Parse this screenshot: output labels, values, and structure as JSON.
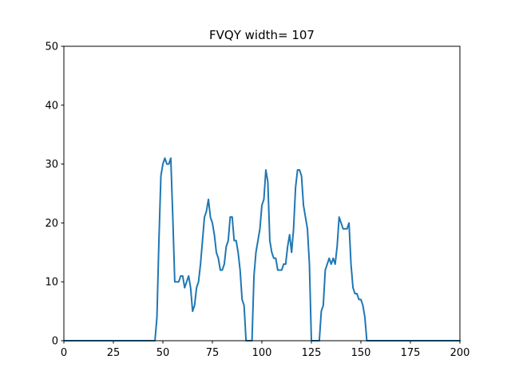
{
  "chart_data": {
    "type": "line",
    "title": "FVQY width= 107",
    "xlabel": "",
    "ylabel": "",
    "xlim": [
      0,
      200
    ],
    "ylim": [
      0,
      50
    ],
    "xticks": [
      0,
      25,
      50,
      75,
      100,
      125,
      150,
      175,
      200
    ],
    "yticks": [
      0,
      10,
      20,
      30,
      40,
      50
    ],
    "grid": false,
    "line_color": "#1f77b4",
    "series": [
      {
        "x": [
          0,
          1,
          2,
          3,
          4,
          5,
          6,
          7,
          8,
          9,
          10,
          11,
          12,
          13,
          14,
          15,
          16,
          17,
          18,
          19,
          20,
          21,
          22,
          23,
          24,
          25,
          26,
          27,
          28,
          29,
          30,
          31,
          32,
          33,
          34,
          35,
          36,
          37,
          38,
          39,
          40,
          41,
          42,
          43,
          44,
          45,
          46,
          47,
          48,
          49,
          50,
          51,
          52,
          53,
          54,
          55,
          56,
          57,
          58,
          59,
          60,
          61,
          62,
          63,
          64,
          65,
          66,
          67,
          68,
          69,
          70,
          71,
          72,
          73,
          74,
          75,
          76,
          77,
          78,
          79,
          80,
          81,
          82,
          83,
          84,
          85,
          86,
          87,
          88,
          89,
          90,
          91,
          92,
          93,
          94,
          95,
          96,
          97,
          98,
          99,
          100,
          101,
          102,
          103,
          104,
          105,
          106,
          107,
          108,
          109,
          110,
          111,
          112,
          113,
          114,
          115,
          116,
          117,
          118,
          119,
          120,
          121,
          122,
          123,
          124,
          125,
          126,
          127,
          128,
          129,
          130,
          131,
          132,
          133,
          134,
          135,
          136,
          137,
          138,
          139,
          140,
          141,
          142,
          143,
          144,
          145,
          146,
          147,
          148,
          149,
          150,
          151,
          152,
          153,
          154,
          155,
          156,
          157,
          158,
          159,
          160,
          161,
          162,
          163,
          164,
          165,
          166,
          167,
          168,
          169,
          170,
          171,
          172,
          173,
          174,
          175,
          176,
          177,
          178,
          179,
          180,
          181,
          182,
          183,
          184,
          185,
          186,
          187,
          188,
          189,
          190,
          191,
          192,
          193,
          194,
          195,
          196,
          197,
          198,
          199,
          200
        ],
        "values": [
          0,
          0,
          0,
          0,
          0,
          0,
          0,
          0,
          0,
          0,
          0,
          0,
          0,
          0,
          0,
          0,
          0,
          0,
          0,
          0,
          0,
          0,
          0,
          0,
          0,
          0,
          0,
          0,
          0,
          0,
          0,
          0,
          0,
          0,
          0,
          0,
          0,
          0,
          0,
          0,
          0,
          0,
          0,
          0,
          0,
          0,
          0,
          4,
          17,
          28,
          30,
          31,
          30,
          30,
          31,
          21,
          10,
          10,
          10,
          11,
          11,
          9,
          10,
          11,
          9,
          5,
          6,
          9,
          10,
          13,
          17,
          21,
          22,
          24,
          21,
          20,
          18,
          15,
          14,
          12,
          12,
          13,
          16,
          17,
          21,
          21,
          17,
          17,
          15,
          12,
          7,
          6,
          0,
          0,
          0,
          0,
          11,
          15,
          17,
          19,
          23,
          24,
          29,
          27,
          17,
          15,
          14,
          14,
          12,
          12,
          12,
          13,
          13,
          16,
          18,
          15,
          19,
          26,
          29,
          29,
          28,
          23,
          21,
          19,
          13,
          0,
          0,
          0,
          0,
          0,
          5,
          6,
          12,
          13,
          14,
          13,
          14,
          13,
          16,
          21,
          20,
          19,
          19,
          19,
          20,
          13,
          9,
          8,
          8,
          7,
          7,
          6,
          4,
          0,
          0,
          0,
          0,
          0,
          0,
          0,
          0,
          0,
          0,
          0,
          0,
          0,
          0,
          0,
          0,
          0,
          0,
          0,
          0,
          0,
          0,
          0,
          0,
          0,
          0,
          0,
          0,
          0,
          0,
          0,
          0,
          0,
          0,
          0,
          0,
          0,
          0,
          0,
          0,
          0,
          0,
          0,
          0,
          0,
          0,
          0,
          0
        ]
      }
    ]
  }
}
